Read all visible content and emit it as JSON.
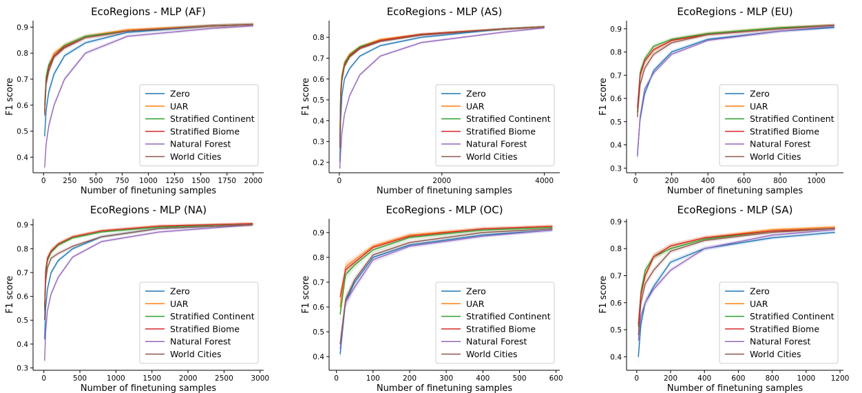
{
  "legend_labels": [
    "Zero",
    "UAR",
    "Stratified Continent",
    "Stratified Biome",
    "Natural Forest",
    "World Cities"
  ],
  "series_colors": [
    "#1f77b4",
    "#ff7f0e",
    "#2ca02c",
    "#d62728",
    "#9467bd",
    "#8c564b"
  ],
  "chart_data": [
    {
      "type": "line",
      "title": "EcoRegions - MLP (AF)",
      "xlabel": "Number of finetuning samples",
      "ylabel": "F1 score",
      "xlim": [
        -100,
        2100
      ],
      "ylim": [
        0.34,
        0.925
      ],
      "xticks": [
        0,
        250,
        500,
        750,
        1000,
        1250,
        1500,
        1750,
        2000
      ],
      "yticks": [
        0.4,
        0.5,
        0.6,
        0.7,
        0.8,
        0.9
      ],
      "x": [
        10,
        25,
        50,
        100,
        200,
        400,
        800,
        1600,
        2000
      ],
      "series": [
        {
          "name": "Zero",
          "values": [
            0.48,
            0.58,
            0.65,
            0.72,
            0.79,
            0.84,
            0.88,
            0.905,
            0.91
          ]
        },
        {
          "name": "UAR",
          "values": [
            0.58,
            0.7,
            0.75,
            0.8,
            0.83,
            0.865,
            0.89,
            0.905,
            0.91
          ]
        },
        {
          "name": "Stratified Continent",
          "values": [
            0.6,
            0.71,
            0.755,
            0.79,
            0.83,
            0.865,
            0.885,
            0.905,
            0.91
          ]
        },
        {
          "name": "Stratified Biome",
          "values": [
            0.57,
            0.69,
            0.745,
            0.79,
            0.825,
            0.86,
            0.885,
            0.905,
            0.91
          ]
        },
        {
          "name": "Natural Forest",
          "values": [
            0.36,
            0.45,
            0.52,
            0.6,
            0.7,
            0.8,
            0.865,
            0.895,
            0.905
          ]
        },
        {
          "name": "World Cities",
          "values": [
            0.56,
            0.68,
            0.73,
            0.785,
            0.82,
            0.86,
            0.885,
            0.905,
            0.91
          ]
        }
      ]
    },
    {
      "type": "line",
      "title": "EcoRegions - MLP (AS)",
      "xlabel": "Number of finetuning samples",
      "ylabel": "F1 score",
      "xlim": [
        -200,
        4300
      ],
      "ylim": [
        0.15,
        0.88
      ],
      "xticks": [
        0,
        2000,
        4000
      ],
      "yticks": [
        0.2,
        0.3,
        0.4,
        0.5,
        0.6,
        0.7,
        0.8
      ],
      "x": [
        10,
        25,
        50,
        100,
        200,
        400,
        800,
        1600,
        3200,
        4000
      ],
      "series": [
        {
          "name": "Zero",
          "values": [
            0.2,
            0.4,
            0.52,
            0.6,
            0.65,
            0.71,
            0.76,
            0.8,
            0.84,
            0.85
          ]
        },
        {
          "name": "UAR",
          "values": [
            0.32,
            0.55,
            0.62,
            0.68,
            0.72,
            0.755,
            0.79,
            0.815,
            0.84,
            0.85
          ]
        },
        {
          "name": "Stratified Continent",
          "values": [
            0.3,
            0.53,
            0.61,
            0.675,
            0.715,
            0.755,
            0.785,
            0.815,
            0.84,
            0.85
          ]
        },
        {
          "name": "Stratified Biome",
          "values": [
            0.28,
            0.52,
            0.6,
            0.665,
            0.71,
            0.75,
            0.785,
            0.815,
            0.84,
            0.85
          ]
        },
        {
          "name": "Natural Forest",
          "values": [
            0.17,
            0.25,
            0.34,
            0.43,
            0.52,
            0.62,
            0.71,
            0.775,
            0.825,
            0.845
          ]
        },
        {
          "name": "World Cities",
          "values": [
            0.27,
            0.5,
            0.59,
            0.66,
            0.705,
            0.745,
            0.78,
            0.81,
            0.84,
            0.85
          ]
        }
      ]
    },
    {
      "type": "line",
      "title": "EcoRegions - MLP (EU)",
      "xlabel": "Number of finetuning samples",
      "ylabel": "F1 score",
      "xlim": [
        -50,
        1150
      ],
      "ylim": [
        0.28,
        0.935
      ],
      "xticks": [
        0,
        200,
        400,
        600,
        800,
        1000
      ],
      "yticks": [
        0.3,
        0.4,
        0.5,
        0.6,
        0.7,
        0.8,
        0.9
      ],
      "x": [
        10,
        25,
        50,
        100,
        200,
        400,
        800,
        1100
      ],
      "series": [
        {
          "name": "Zero",
          "values": [
            0.36,
            0.51,
            0.62,
            0.72,
            0.8,
            0.855,
            0.89,
            0.905
          ]
        },
        {
          "name": "UAR",
          "values": [
            0.55,
            0.7,
            0.76,
            0.81,
            0.85,
            0.88,
            0.905,
            0.915
          ]
        },
        {
          "name": "Stratified Continent",
          "values": [
            0.54,
            0.71,
            0.77,
            0.825,
            0.855,
            0.88,
            0.905,
            0.915
          ]
        },
        {
          "name": "Stratified Biome",
          "values": [
            0.56,
            0.7,
            0.76,
            0.81,
            0.85,
            0.875,
            0.9,
            0.915
          ]
        },
        {
          "name": "Natural Forest",
          "values": [
            0.35,
            0.52,
            0.64,
            0.71,
            0.79,
            0.85,
            0.89,
            0.91
          ]
        },
        {
          "name": "World Cities",
          "values": [
            0.52,
            0.66,
            0.73,
            0.79,
            0.84,
            0.875,
            0.9,
            0.915
          ]
        }
      ]
    },
    {
      "type": "line",
      "title": "EcoRegions - MLP (NA)",
      "xlabel": "Number of finetuning samples",
      "ylabel": "F1 score",
      "xlim": [
        -150,
        3050
      ],
      "ylim": [
        0.29,
        0.925
      ],
      "xticks": [
        0,
        500,
        1000,
        1500,
        2000,
        2500,
        3000
      ],
      "yticks": [
        0.3,
        0.4,
        0.5,
        0.6,
        0.7,
        0.8,
        0.9
      ],
      "x": [
        10,
        25,
        50,
        100,
        200,
        400,
        800,
        1600,
        2900
      ],
      "series": [
        {
          "name": "Zero",
          "values": [
            0.42,
            0.55,
            0.63,
            0.7,
            0.75,
            0.8,
            0.85,
            0.885,
            0.9
          ]
        },
        {
          "name": "UAR",
          "values": [
            0.55,
            0.7,
            0.76,
            0.79,
            0.82,
            0.85,
            0.875,
            0.895,
            0.905
          ]
        },
        {
          "name": "Stratified Continent",
          "values": [
            0.54,
            0.69,
            0.75,
            0.785,
            0.815,
            0.845,
            0.87,
            0.89,
            0.905
          ]
        },
        {
          "name": "Stratified Biome",
          "values": [
            0.56,
            0.71,
            0.76,
            0.79,
            0.82,
            0.85,
            0.875,
            0.895,
            0.905
          ]
        },
        {
          "name": "Natural Forest",
          "values": [
            0.33,
            0.45,
            0.54,
            0.61,
            0.68,
            0.765,
            0.83,
            0.87,
            0.9
          ]
        },
        {
          "name": "World Cities",
          "values": [
            0.5,
            0.66,
            0.72,
            0.76,
            0.78,
            0.81,
            0.85,
            0.885,
            0.9
          ]
        }
      ]
    },
    {
      "type": "line",
      "title": "EcoRegions - MLP (OC)",
      "xlabel": "Number of finetuning samples",
      "ylabel": "F1 score",
      "xlim": [
        -20,
        610
      ],
      "ylim": [
        0.345,
        0.955
      ],
      "xticks": [
        0,
        100,
        200,
        300,
        400,
        500,
        600
      ],
      "yticks": [
        0.4,
        0.5,
        0.6,
        0.7,
        0.8,
        0.9
      ],
      "x": [
        10,
        25,
        50,
        100,
        200,
        400,
        590
      ],
      "series": [
        {
          "name": "Zero",
          "values": [
            0.41,
            0.62,
            0.7,
            0.8,
            0.85,
            0.89,
            0.91
          ]
        },
        {
          "name": "UAR",
          "values": [
            0.6,
            0.76,
            0.79,
            0.845,
            0.89,
            0.915,
            0.925
          ]
        },
        {
          "name": "Stratified Continent",
          "values": [
            0.57,
            0.73,
            0.77,
            0.83,
            0.88,
            0.91,
            0.92
          ]
        },
        {
          "name": "Stratified Biome",
          "values": [
            0.64,
            0.75,
            0.78,
            0.84,
            0.885,
            0.915,
            0.925
          ]
        },
        {
          "name": "Natural Forest",
          "values": [
            0.43,
            0.62,
            0.68,
            0.79,
            0.845,
            0.885,
            0.91
          ]
        },
        {
          "name": "World Cities",
          "values": [
            0.45,
            0.63,
            0.71,
            0.81,
            0.86,
            0.9,
            0.915
          ]
        }
      ]
    },
    {
      "type": "line",
      "title": "EcoRegions - MLP (SA)",
      "xlabel": "Number of finetuning samples",
      "ylabel": "F1 score",
      "xlim": [
        -60,
        1220
      ],
      "ylim": [
        0.35,
        0.91
      ],
      "xticks": [
        0,
        200,
        400,
        600,
        800,
        1000,
        1200
      ],
      "yticks": [
        0.4,
        0.5,
        0.6,
        0.7,
        0.8,
        0.9
      ],
      "x": [
        10,
        25,
        50,
        100,
        200,
        400,
        800,
        1170
      ],
      "series": [
        {
          "name": "Zero",
          "values": [
            0.4,
            0.52,
            0.6,
            0.66,
            0.75,
            0.8,
            0.84,
            0.86
          ]
        },
        {
          "name": "UAR",
          "values": [
            0.52,
            0.63,
            0.7,
            0.77,
            0.81,
            0.84,
            0.87,
            0.88
          ]
        },
        {
          "name": "Stratified Continent",
          "values": [
            0.51,
            0.64,
            0.72,
            0.77,
            0.8,
            0.835,
            0.865,
            0.875
          ]
        },
        {
          "name": "Stratified Biome",
          "values": [
            0.52,
            0.63,
            0.7,
            0.77,
            0.81,
            0.84,
            0.865,
            0.875
          ]
        },
        {
          "name": "Natural Forest",
          "values": [
            0.46,
            0.55,
            0.6,
            0.65,
            0.72,
            0.8,
            0.85,
            0.87
          ]
        },
        {
          "name": "World Cities",
          "values": [
            0.48,
            0.6,
            0.67,
            0.72,
            0.79,
            0.83,
            0.86,
            0.875
          ]
        }
      ]
    }
  ]
}
